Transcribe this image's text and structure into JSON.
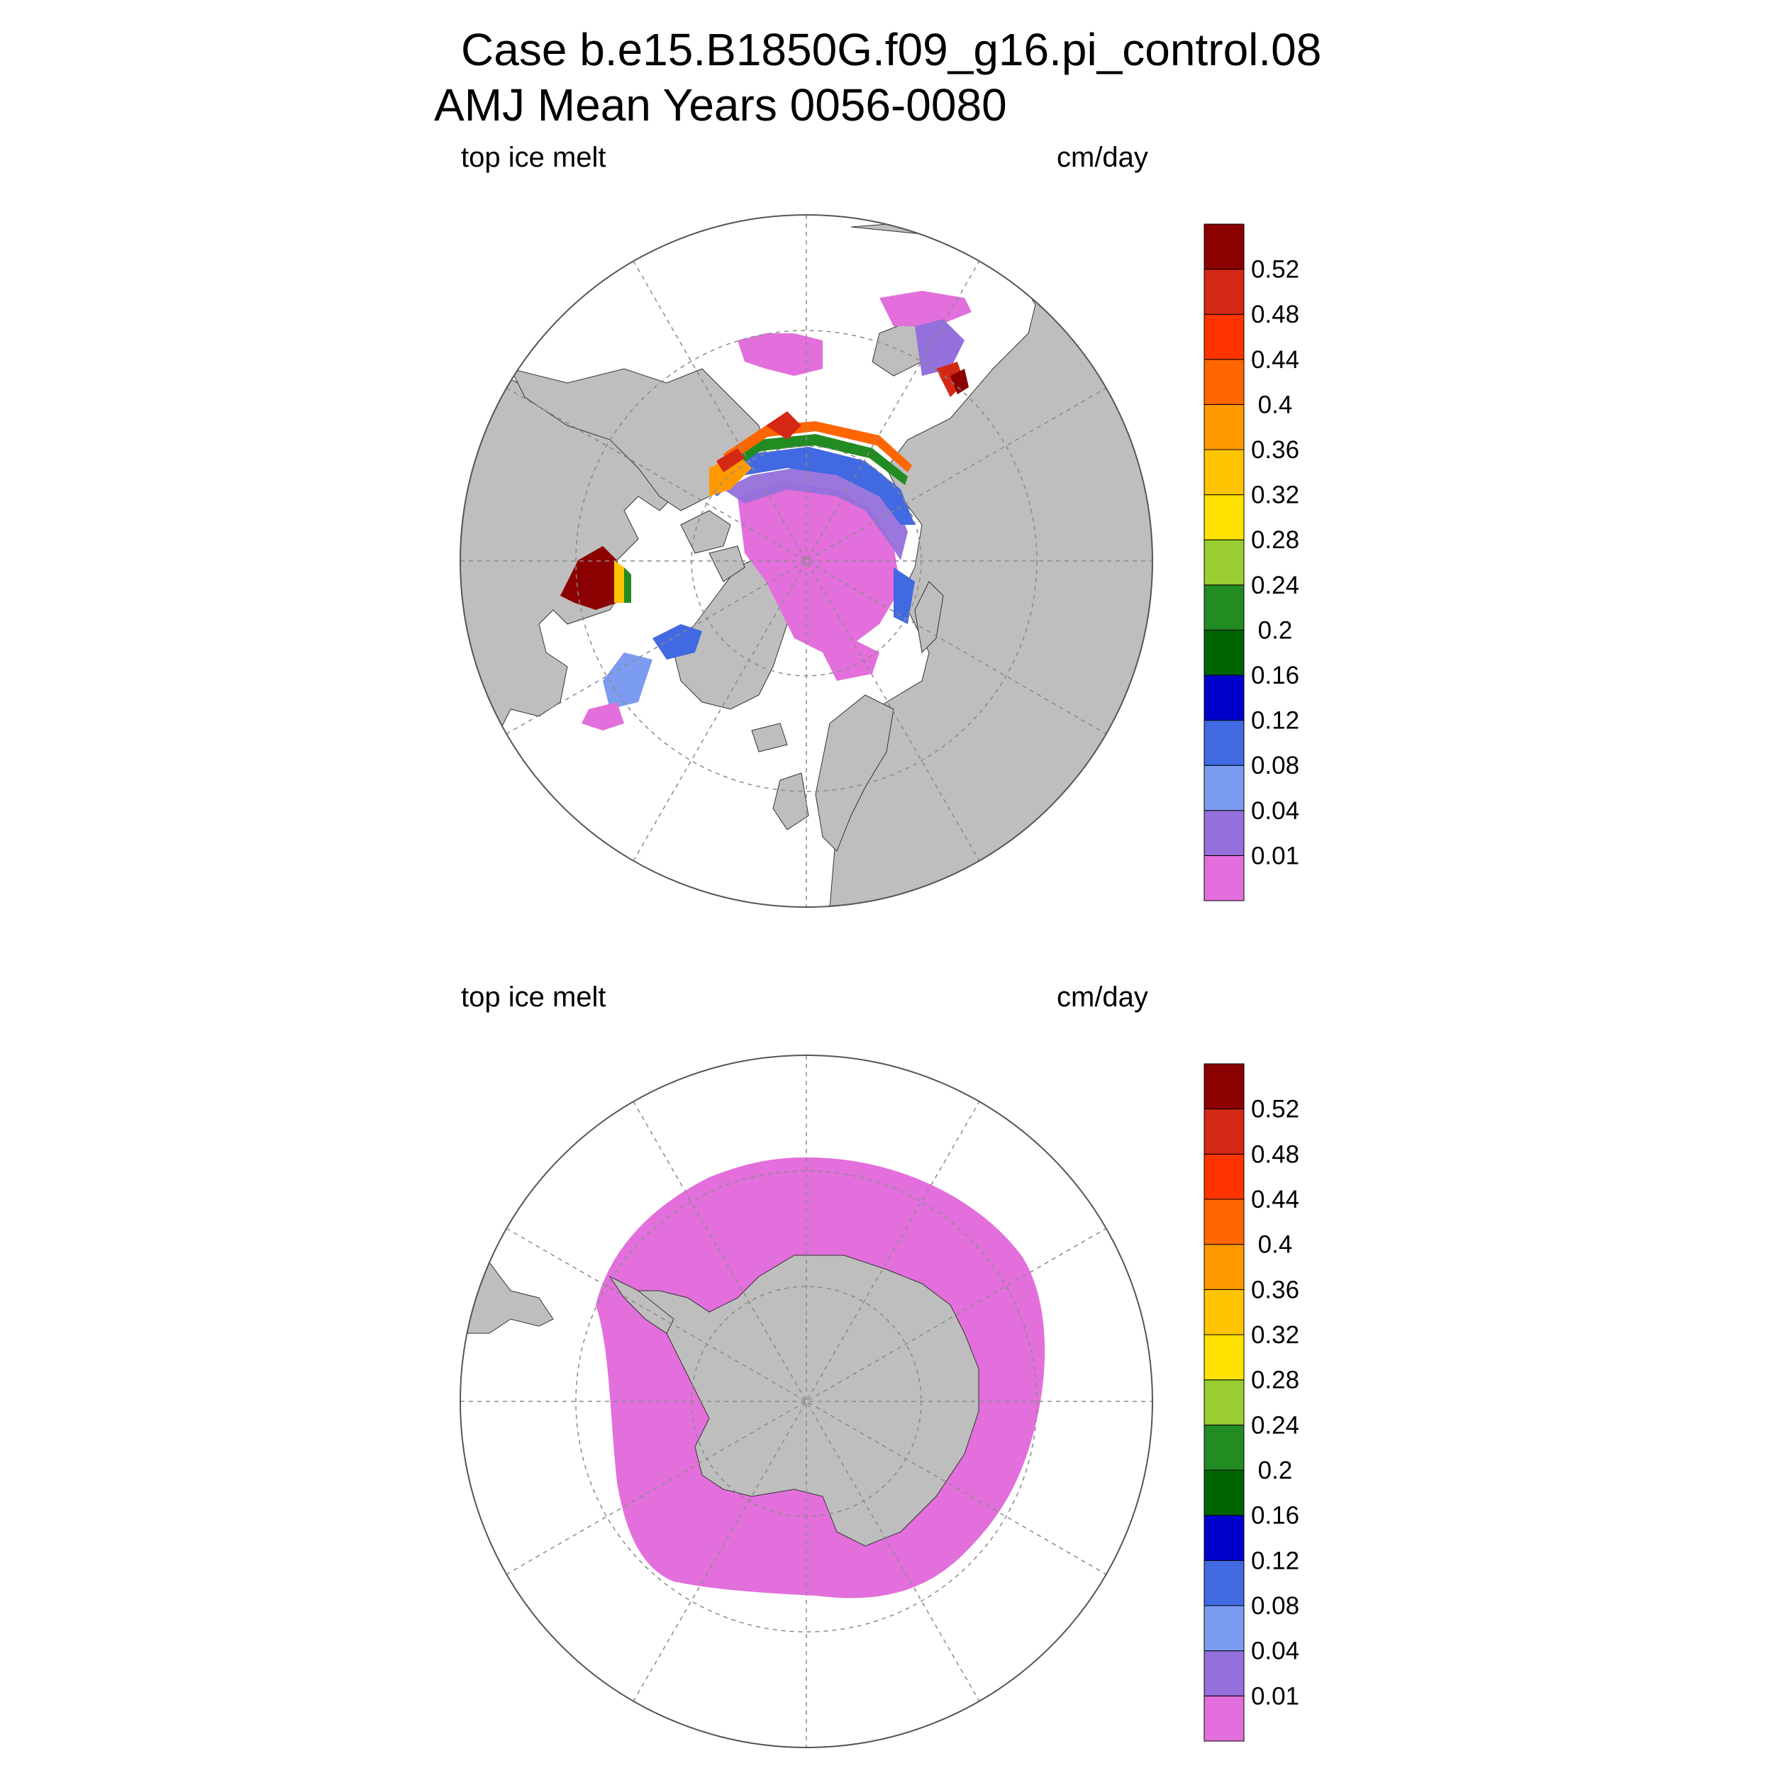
{
  "title": {
    "line1": "Case b.e15.B1850G.f09_g16.pi_control.08",
    "line2": "AMJ Mean   Years 0056-0080"
  },
  "colors": {
    "land": "#bebebe",
    "ocean": "#ffffff",
    "graticule": "#8a8a8a",
    "levels": [
      "#e26fdb",
      "#9370db",
      "#7b9cf0",
      "#4169e1",
      "#0000cd",
      "#006400",
      "#228b22",
      "#9acd32",
      "#ffe100",
      "#ffc400",
      "#ff9900",
      "#ff6600",
      "#ff3300",
      "#d42814",
      "#8b0000"
    ]
  },
  "colorbar": {
    "labels": [
      "0.01",
      "0.04",
      "0.08",
      "0.12",
      "0.16",
      "0.2",
      "0.24",
      "0.28",
      "0.32",
      "0.36",
      "0.4",
      "0.44",
      "0.48",
      "0.52"
    ]
  },
  "panels": [
    {
      "id": "north",
      "variable": "top ice melt",
      "units": "cm/day",
      "hemisphere": "Northern"
    },
    {
      "id": "south",
      "variable": "top ice melt",
      "units": "cm/day",
      "hemisphere": "Southern"
    }
  ]
}
